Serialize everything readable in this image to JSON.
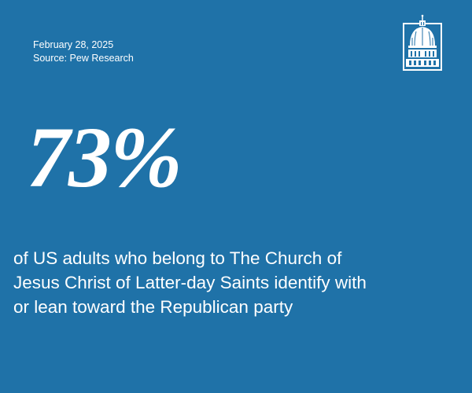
{
  "meta": {
    "date": "February 28, 2025",
    "source": "Source: Pew Research"
  },
  "logo": {
    "icon": "capitol-dome-icon"
  },
  "stat": {
    "value": "73%"
  },
  "description": {
    "lines": [
      "of US adults who belong to The Church of",
      "Jesus Christ of Latter-day Saints identify with",
      "or lean toward the Republican party"
    ]
  },
  "colors": {
    "background": "#1f72a8",
    "text": "#ffffff"
  }
}
